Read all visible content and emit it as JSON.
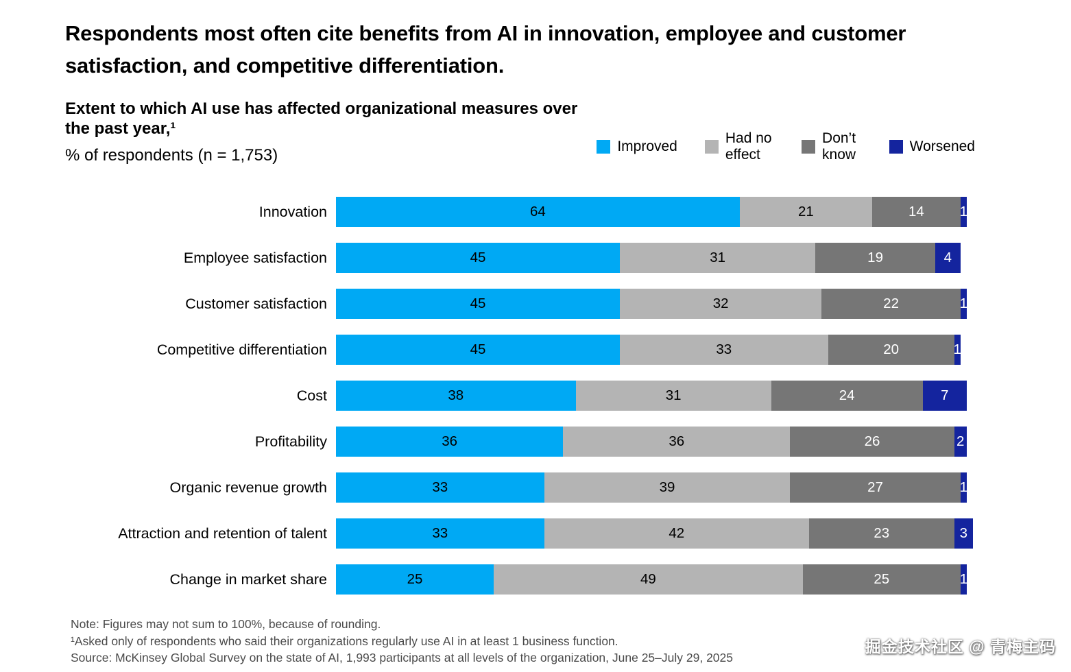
{
  "header": {
    "title": "Respondents most often cite benefits from AI in innovation, employee and customer satisfaction, and competitive differentiation."
  },
  "subtitle": {
    "line1": "Extent to which AI use has affected organizational measures over the past year,¹",
    "line2": "% of respondents (n = 1,753)"
  },
  "chart_data": {
    "type": "bar",
    "orientation": "horizontal",
    "stacked": true,
    "title": "Extent to which AI use has affected organizational measures over the past year",
    "subtitle": "% of respondents (n = 1,753)",
    "xlim": [
      0,
      100
    ],
    "grid": false,
    "legend_position": "top-right",
    "categories": [
      "Innovation",
      "Employee satisfaction",
      "Customer satisfaction",
      "Competitive differentiation",
      "Cost",
      "Profitability",
      "Organic revenue growth",
      "Attraction and retention of talent",
      "Change in market share"
    ],
    "series": [
      {
        "name": "Improved",
        "color": "#00A9F4",
        "label_color": "#000000",
        "values": [
          64,
          45,
          45,
          45,
          38,
          36,
          33,
          33,
          25
        ]
      },
      {
        "name": "Had no effect",
        "color": "#B4B4B4",
        "label_color": "#000000",
        "values": [
          21,
          31,
          32,
          33,
          31,
          36,
          39,
          42,
          49
        ]
      },
      {
        "name": "Don’t know",
        "color": "#767676",
        "label_color": "#FFFFFF",
        "values": [
          14,
          19,
          22,
          20,
          24,
          26,
          27,
          23,
          25
        ]
      },
      {
        "name": "Worsened",
        "color": "#14249E",
        "label_color": "#FFFFFF",
        "values": [
          1,
          4,
          1,
          1,
          7,
          2,
          1,
          3,
          1
        ]
      }
    ]
  },
  "notes": [
    "Note: Figures may not sum to 100%, because of rounding.",
    "¹Asked only of respondents who said their organizations regularly use AI in at least 1 business function.",
    "Source: McKinsey Global Survey on the state of AI, 1,993 participants at all levels of the organization, June 25–July 29, 2025"
  ],
  "watermark": "掘金技术社区 @ 青梅主码"
}
